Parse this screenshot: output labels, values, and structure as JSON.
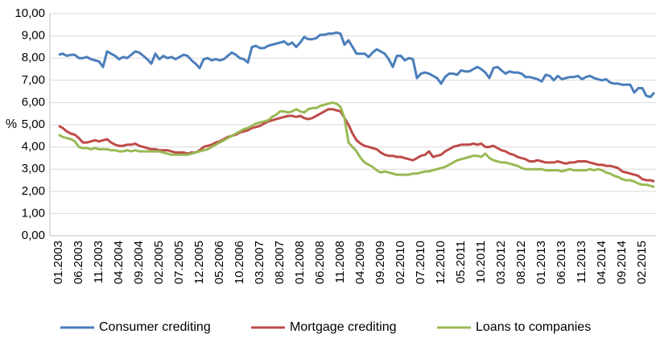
{
  "chart_data": {
    "type": "line",
    "y_label": "%",
    "ylim": [
      0,
      10
    ],
    "yticks": [
      {
        "value": 0,
        "label": "0,00"
      },
      {
        "value": 1,
        "label": "1,00"
      },
      {
        "value": 2,
        "label": "2,00"
      },
      {
        "value": 3,
        "label": "3,00"
      },
      {
        "value": 4,
        "label": "4,00"
      },
      {
        "value": 5,
        "label": "5,00"
      },
      {
        "value": 6,
        "label": "6,00"
      },
      {
        "value": 7,
        "label": "7,00"
      },
      {
        "value": 8,
        "label": "8,00"
      },
      {
        "value": 9,
        "label": "9,00"
      },
      {
        "value": 10,
        "label": "10,00"
      }
    ],
    "grid": true,
    "legend": "bottom",
    "categories": [
      "01.2003",
      null,
      null,
      null,
      null,
      "06.2003",
      null,
      null,
      null,
      null,
      "11.2003",
      null,
      null,
      null,
      null,
      "04.2004",
      null,
      null,
      null,
      null,
      "09.2004",
      null,
      null,
      null,
      null,
      "02.2005",
      null,
      null,
      null,
      null,
      "07.2005",
      null,
      null,
      null,
      null,
      "12.2005",
      null,
      null,
      null,
      null,
      "05.2006",
      null,
      null,
      null,
      null,
      "10.2006",
      null,
      null,
      null,
      null,
      "03.2007",
      null,
      null,
      null,
      null,
      "08.2007",
      null,
      null,
      null,
      null,
      "01.2008",
      null,
      null,
      null,
      null,
      "06.2008",
      null,
      null,
      null,
      null,
      "11.2008",
      null,
      null,
      null,
      null,
      "04.2009",
      null,
      null,
      null,
      null,
      "09.2009",
      null,
      null,
      null,
      null,
      "02.2010",
      null,
      null,
      null,
      null,
      "07.2010",
      null,
      null,
      null,
      null,
      "12.2010",
      null,
      null,
      null,
      null,
      "05.2011",
      null,
      null,
      null,
      null,
      "10.2011",
      null,
      null,
      null,
      null,
      "03.2012",
      null,
      null,
      null,
      null,
      "08.2012",
      null,
      null,
      null,
      null,
      "01.2013",
      null,
      null,
      null,
      null,
      "06.2013",
      null,
      null,
      null,
      null,
      "11.2013",
      null,
      null,
      null,
      null,
      "04.2014",
      null,
      null,
      null,
      null,
      "09.2014",
      null,
      null,
      null,
      null,
      "02.2015",
      null,
      null,
      null
    ],
    "series": [
      {
        "name": "Consumer crediting",
        "color": "#4a7ebb",
        "values": [
          8.15,
          8.2,
          8.1,
          8.15,
          8.15,
          8.0,
          8.0,
          8.05,
          7.95,
          7.9,
          7.85,
          7.6,
          8.3,
          8.2,
          8.1,
          7.95,
          8.05,
          8.0,
          8.15,
          8.3,
          8.25,
          8.1,
          7.95,
          7.75,
          8.2,
          7.95,
          8.1,
          8.0,
          8.05,
          7.95,
          8.05,
          8.15,
          8.1,
          7.9,
          7.75,
          7.55,
          7.95,
          8.0,
          7.9,
          7.95,
          7.9,
          7.95,
          8.1,
          8.25,
          8.15,
          8.0,
          7.95,
          7.8,
          8.5,
          8.55,
          8.45,
          8.45,
          8.55,
          8.6,
          8.65,
          8.7,
          8.75,
          8.6,
          8.7,
          8.5,
          8.7,
          8.95,
          8.85,
          8.85,
          8.9,
          9.05,
          9.05,
          9.1,
          9.1,
          9.15,
          9.1,
          8.6,
          8.8,
          8.5,
          8.2,
          8.2,
          8.2,
          8.05,
          8.25,
          8.4,
          8.3,
          8.2,
          7.95,
          7.6,
          8.1,
          8.1,
          7.9,
          8.0,
          7.95,
          7.1,
          7.3,
          7.35,
          7.3,
          7.2,
          7.1,
          6.85,
          7.15,
          7.3,
          7.3,
          7.25,
          7.45,
          7.4,
          7.4,
          7.5,
          7.6,
          7.5,
          7.35,
          7.1,
          7.55,
          7.6,
          7.45,
          7.3,
          7.4,
          7.35,
          7.35,
          7.3,
          7.15,
          7.15,
          7.1,
          7.05,
          6.95,
          7.25,
          7.2,
          7.0,
          7.2,
          7.05,
          7.1,
          7.15,
          7.15,
          7.2,
          7.05,
          7.15,
          7.2,
          7.1,
          7.05,
          7.0,
          7.05,
          6.9,
          6.85,
          6.85,
          6.8,
          6.8,
          6.8,
          6.45,
          6.65,
          6.65,
          6.3,
          6.25,
          6.45
        ]
      },
      {
        "name": "Mortgage crediting",
        "color": "#be4b48",
        "values": [
          4.95,
          4.85,
          4.7,
          4.6,
          4.55,
          4.4,
          4.2,
          4.2,
          4.25,
          4.3,
          4.25,
          4.3,
          4.35,
          4.2,
          4.1,
          4.05,
          4.05,
          4.1,
          4.1,
          4.15,
          4.05,
          4.0,
          3.95,
          3.9,
          3.9,
          3.85,
          3.85,
          3.85,
          3.8,
          3.75,
          3.75,
          3.75,
          3.7,
          3.75,
          3.75,
          3.85,
          4.0,
          4.05,
          4.1,
          4.2,
          4.25,
          4.35,
          4.45,
          4.5,
          4.55,
          4.65,
          4.7,
          4.75,
          4.85,
          4.9,
          4.95,
          5.05,
          5.15,
          5.2,
          5.25,
          5.3,
          5.35,
          5.4,
          5.4,
          5.35,
          5.4,
          5.3,
          5.25,
          5.3,
          5.4,
          5.5,
          5.6,
          5.7,
          5.7,
          5.65,
          5.6,
          5.3,
          5.0,
          4.6,
          4.3,
          4.15,
          4.05,
          4.0,
          3.95,
          3.9,
          3.75,
          3.65,
          3.6,
          3.6,
          3.55,
          3.55,
          3.5,
          3.45,
          3.4,
          3.5,
          3.6,
          3.65,
          3.8,
          3.55,
          3.6,
          3.65,
          3.8,
          3.9,
          4.0,
          4.05,
          4.1,
          4.1,
          4.1,
          4.15,
          4.1,
          4.15,
          4.0,
          4.0,
          4.05,
          3.95,
          3.85,
          3.8,
          3.7,
          3.65,
          3.55,
          3.5,
          3.45,
          3.35,
          3.35,
          3.4,
          3.35,
          3.3,
          3.3,
          3.3,
          3.35,
          3.3,
          3.25,
          3.3,
          3.3,
          3.35,
          3.35,
          3.35,
          3.3,
          3.25,
          3.2,
          3.2,
          3.15,
          3.15,
          3.1,
          3.05,
          2.9,
          2.85,
          2.8,
          2.75,
          2.7,
          2.55,
          2.5,
          2.5,
          2.45
        ]
      },
      {
        "name": "Loans to companies",
        "color": "#98b954",
        "values": [
          4.55,
          4.45,
          4.4,
          4.35,
          4.25,
          4.0,
          3.95,
          3.95,
          3.9,
          3.95,
          3.9,
          3.9,
          3.9,
          3.85,
          3.85,
          3.8,
          3.8,
          3.85,
          3.8,
          3.85,
          3.8,
          3.8,
          3.8,
          3.8,
          3.8,
          3.8,
          3.75,
          3.7,
          3.65,
          3.65,
          3.65,
          3.65,
          3.65,
          3.7,
          3.75,
          3.8,
          3.85,
          3.9,
          4.0,
          4.1,
          4.2,
          4.3,
          4.4,
          4.5,
          4.6,
          4.7,
          4.8,
          4.85,
          4.95,
          5.05,
          5.1,
          5.15,
          5.2,
          5.35,
          5.45,
          5.6,
          5.6,
          5.55,
          5.6,
          5.7,
          5.6,
          5.55,
          5.7,
          5.75,
          5.75,
          5.85,
          5.9,
          5.95,
          6.0,
          5.95,
          5.8,
          5.3,
          4.2,
          4.0,
          3.8,
          3.5,
          3.3,
          3.2,
          3.1,
          2.95,
          2.85,
          2.9,
          2.85,
          2.8,
          2.75,
          2.75,
          2.75,
          2.75,
          2.8,
          2.8,
          2.85,
          2.9,
          2.9,
          2.95,
          3.0,
          3.05,
          3.1,
          3.2,
          3.3,
          3.4,
          3.45,
          3.5,
          3.55,
          3.6,
          3.6,
          3.55,
          3.7,
          3.5,
          3.4,
          3.35,
          3.3,
          3.3,
          3.25,
          3.2,
          3.15,
          3.05,
          3.0,
          3.0,
          3.0,
          3.0,
          3.0,
          2.95,
          2.95,
          2.95,
          2.95,
          2.9,
          2.95,
          3.0,
          2.95,
          2.95,
          2.95,
          2.95,
          3.0,
          2.95,
          3.0,
          2.95,
          2.85,
          2.8,
          2.7,
          2.65,
          2.55,
          2.5,
          2.5,
          2.45,
          2.35,
          2.3,
          2.3,
          2.25,
          2.2
        ]
      }
    ]
  }
}
